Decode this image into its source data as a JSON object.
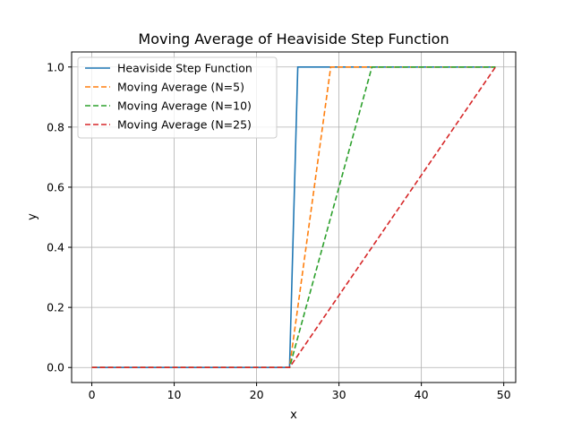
{
  "chart_data": {
    "type": "line",
    "title": "Moving Average of Heaviside Step Function",
    "xlabel": "x",
    "ylabel": "y",
    "xlim": [
      -2.45,
      51.45
    ],
    "ylim": [
      -0.05,
      1.05
    ],
    "xticks": [
      0,
      10,
      20,
      30,
      40,
      50
    ],
    "xtick_labels": [
      "0",
      "10",
      "20",
      "30",
      "40",
      "50"
    ],
    "yticks": [
      0.0,
      0.2,
      0.4,
      0.6,
      0.8,
      1.0
    ],
    "ytick_labels": [
      "0.0",
      "0.2",
      "0.4",
      "0.6",
      "0.8",
      "1.0"
    ],
    "grid": true,
    "legend_position": "top-left",
    "series": [
      {
        "name": "Heaviside Step Function",
        "color": "#1f77b4",
        "style": "solid",
        "x": [
          0,
          24,
          25,
          49
        ],
        "y": [
          0,
          0,
          1,
          1
        ]
      },
      {
        "name": "Moving Average (N=5)",
        "color": "#ff7f0e",
        "style": "dashed",
        "x": [
          0,
          24,
          29,
          49
        ],
        "y": [
          0,
          0,
          1,
          1
        ]
      },
      {
        "name": "Moving Average (N=10)",
        "color": "#2ca02c",
        "style": "dashed",
        "x": [
          0,
          24,
          34,
          49
        ],
        "y": [
          0,
          0,
          1,
          1
        ]
      },
      {
        "name": "Moving Average (N=25)",
        "color": "#d62728",
        "style": "dashed",
        "x": [
          0,
          24,
          49
        ],
        "y": [
          0,
          0,
          1
        ]
      }
    ]
  }
}
